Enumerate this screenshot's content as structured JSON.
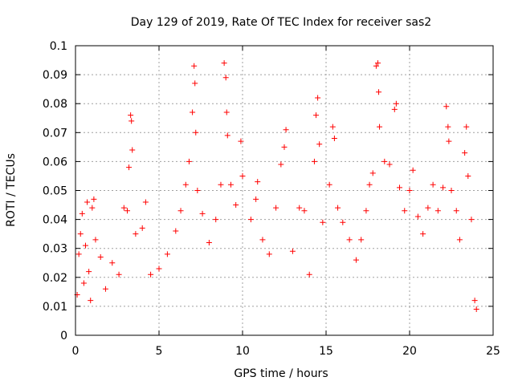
{
  "chart_data": {
    "type": "scatter",
    "title": "Day 129 of 2019, Rate Of TEC Index for receiver sas2",
    "xlabel": "GPS time / hours",
    "ylabel": "ROTI / TECUs",
    "xlim": [
      0,
      25
    ],
    "ylim": [
      0,
      0.1
    ],
    "xticks": [
      "0",
      "5",
      "10",
      "15",
      "20",
      "25"
    ],
    "yticks": [
      "0",
      "0.01",
      "0.02",
      "0.03",
      "0.04",
      "0.05",
      "0.06",
      "0.07",
      "0.08",
      "0.09",
      "0.1"
    ],
    "grid": true,
    "marker": "+",
    "color": "#ff0000",
    "series": [
      {
        "points": [
          [
            0.1,
            0.014
          ],
          [
            0.2,
            0.028
          ],
          [
            0.3,
            0.035
          ],
          [
            0.4,
            0.042
          ],
          [
            0.5,
            0.018
          ],
          [
            0.6,
            0.031
          ],
          [
            0.7,
            0.046
          ],
          [
            0.8,
            0.022
          ],
          [
            0.9,
            0.012
          ],
          [
            1.0,
            0.044
          ],
          [
            1.1,
            0.047
          ],
          [
            1.2,
            0.033
          ],
          [
            1.5,
            0.027
          ],
          [
            1.8,
            0.016
          ],
          [
            2.2,
            0.025
          ],
          [
            2.6,
            0.021
          ],
          [
            2.9,
            0.044
          ],
          [
            3.1,
            0.043
          ],
          [
            3.2,
            0.058
          ],
          [
            3.3,
            0.076
          ],
          [
            3.35,
            0.074
          ],
          [
            3.4,
            0.064
          ],
          [
            3.6,
            0.035
          ],
          [
            4.0,
            0.037
          ],
          [
            4.2,
            0.046
          ],
          [
            4.5,
            0.021
          ],
          [
            5.0,
            0.023
          ],
          [
            5.5,
            0.028
          ],
          [
            6.0,
            0.036
          ],
          [
            6.3,
            0.043
          ],
          [
            6.6,
            0.052
          ],
          [
            6.8,
            0.06
          ],
          [
            7.0,
            0.077
          ],
          [
            7.1,
            0.093
          ],
          [
            7.15,
            0.087
          ],
          [
            7.2,
            0.07
          ],
          [
            7.3,
            0.05
          ],
          [
            7.6,
            0.042
          ],
          [
            8.0,
            0.032
          ],
          [
            8.4,
            0.04
          ],
          [
            8.7,
            0.052
          ],
          [
            8.9,
            0.094
          ],
          [
            9.0,
            0.089
          ],
          [
            9.05,
            0.077
          ],
          [
            9.1,
            0.069
          ],
          [
            9.3,
            0.052
          ],
          [
            9.6,
            0.045
          ],
          [
            9.9,
            0.067
          ],
          [
            10.0,
            0.055
          ],
          [
            10.5,
            0.04
          ],
          [
            10.8,
            0.047
          ],
          [
            10.9,
            0.053
          ],
          [
            11.2,
            0.033
          ],
          [
            11.6,
            0.028
          ],
          [
            12.0,
            0.044
          ],
          [
            12.3,
            0.059
          ],
          [
            12.5,
            0.065
          ],
          [
            12.6,
            0.071
          ],
          [
            13.0,
            0.029
          ],
          [
            13.4,
            0.044
          ],
          [
            13.7,
            0.043
          ],
          [
            14.0,
            0.021
          ],
          [
            14.3,
            0.06
          ],
          [
            14.4,
            0.076
          ],
          [
            14.5,
            0.082
          ],
          [
            14.6,
            0.066
          ],
          [
            14.8,
            0.039
          ],
          [
            15.2,
            0.052
          ],
          [
            15.4,
            0.072
          ],
          [
            15.5,
            0.068
          ],
          [
            15.7,
            0.044
          ],
          [
            16.0,
            0.039
          ],
          [
            16.4,
            0.033
          ],
          [
            16.8,
            0.026
          ],
          [
            17.1,
            0.033
          ],
          [
            17.4,
            0.043
          ],
          [
            17.6,
            0.052
          ],
          [
            17.8,
            0.056
          ],
          [
            18.0,
            0.093
          ],
          [
            18.1,
            0.094
          ],
          [
            18.15,
            0.084
          ],
          [
            18.2,
            0.072
          ],
          [
            18.5,
            0.06
          ],
          [
            18.8,
            0.059
          ],
          [
            19.1,
            0.078
          ],
          [
            19.2,
            0.08
          ],
          [
            19.4,
            0.051
          ],
          [
            19.7,
            0.043
          ],
          [
            20.0,
            0.05
          ],
          [
            20.2,
            0.057
          ],
          [
            20.5,
            0.041
          ],
          [
            20.8,
            0.035
          ],
          [
            21.1,
            0.044
          ],
          [
            21.4,
            0.052
          ],
          [
            21.7,
            0.043
          ],
          [
            22.0,
            0.051
          ],
          [
            22.2,
            0.079
          ],
          [
            22.3,
            0.072
          ],
          [
            22.35,
            0.067
          ],
          [
            22.5,
            0.05
          ],
          [
            22.8,
            0.043
          ],
          [
            23.0,
            0.033
          ],
          [
            23.3,
            0.063
          ],
          [
            23.4,
            0.072
          ],
          [
            23.5,
            0.055
          ],
          [
            23.7,
            0.04
          ],
          [
            23.9,
            0.012
          ],
          [
            24.0,
            0.009
          ]
        ]
      }
    ]
  }
}
